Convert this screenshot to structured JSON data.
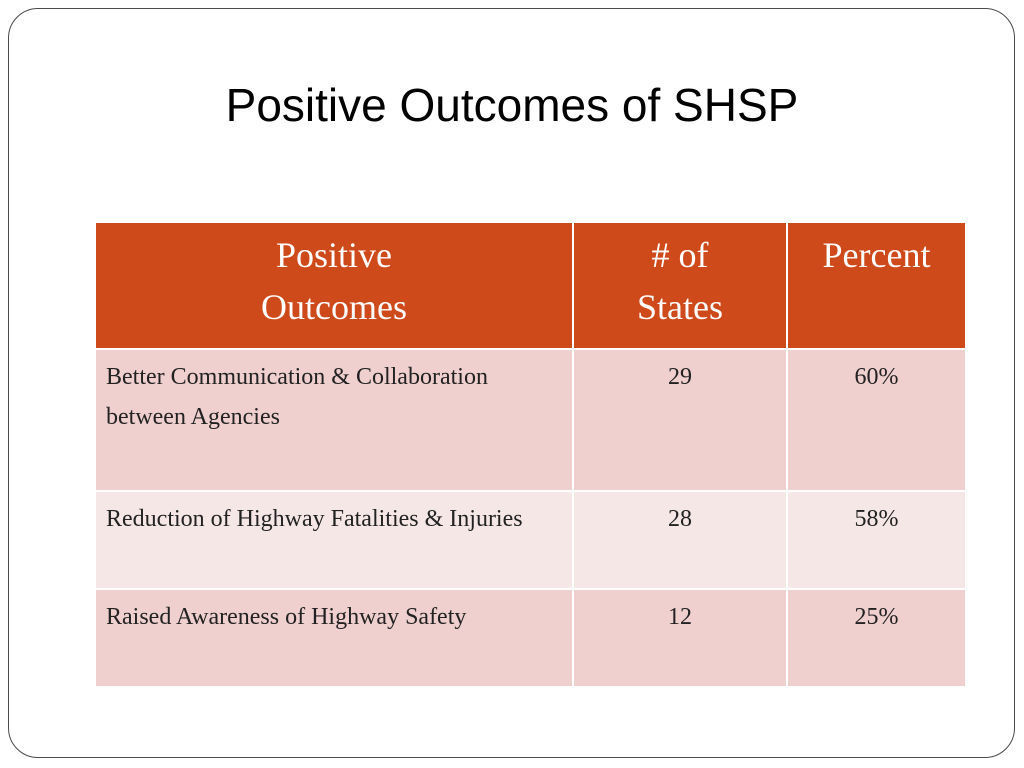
{
  "slide": {
    "title": "Positive Outcomes of SHSP"
  },
  "table": {
    "headers": [
      {
        "line1": "Positive",
        "line2": "Outcomes"
      },
      {
        "line1": "# of",
        "line2": "States"
      },
      {
        "line1": "Percent",
        "line2": ""
      }
    ],
    "rows": [
      {
        "outcome": "Better Communication & Collaboration between Agencies",
        "states": "29",
        "percent": "60%"
      },
      {
        "outcome": "Reduction of Highway Fatalities & Injuries",
        "states": "28",
        "percent": "58%"
      },
      {
        "outcome": "Raised Awareness of Highway Safety",
        "states": "12",
        "percent": "25%"
      }
    ]
  },
  "colors": {
    "header_bg": "#cf4a1a",
    "row_dark_bg": "#f0d0cf",
    "row_light_bg": "#f6e7e7"
  }
}
